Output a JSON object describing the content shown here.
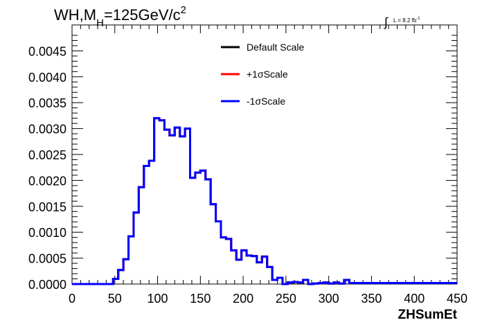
{
  "chart_data": {
    "type": "line",
    "title": "WH,M_H=125GeV/c^2",
    "title_parts": {
      "main": "WH,M",
      "sub": "H",
      "rest": "=125GeV/c",
      "sup": "2"
    },
    "lumi_label": {
      "integral": "∫",
      "text": "L = 8.2 fb",
      "sup": "-1"
    },
    "xlabel": "ZHSumEt",
    "ylabel": "",
    "xlim": [
      0,
      450
    ],
    "ylim": [
      0,
      0.005
    ],
    "x_ticks": [
      "0",
      "50",
      "100",
      "150",
      "200",
      "250",
      "300",
      "350",
      "400",
      "450"
    ],
    "y_ticks": [
      "0.0000",
      "0.0005",
      "0.0010",
      "0.0015",
      "0.0020",
      "0.0025",
      "0.0030",
      "0.0035",
      "0.0040",
      "0.0045"
    ],
    "bin_edges_start": 0,
    "bin_width": 6,
    "legend_position": "top-right",
    "series": [
      {
        "name": "Default Scale",
        "color": "#000000",
        "values": [
          0,
          0,
          0,
          0,
          0,
          0,
          0,
          0,
          0.0001,
          0.00027,
          0.00048,
          0.00092,
          0.00138,
          0.00187,
          0.00228,
          0.00238,
          0.0032,
          0.00316,
          0.00298,
          0.00287,
          0.00302,
          0.00285,
          0.003,
          0.00205,
          0.00215,
          0.00219,
          0.00202,
          0.00154,
          0.00121,
          0.0009,
          0.00087,
          0.00065,
          0.00047,
          0.00065,
          0.00055,
          0.00054,
          0.00042,
          0.00053,
          0.00033,
          8e-05,
          0.00012,
          0,
          3e-05,
          4e-05,
          3e-05,
          8e-05,
          0,
          1e-05,
          2e-05,
          3e-05,
          1e-05,
          3e-05,
          1e-05,
          8e-05,
          2e-05
        ]
      },
      {
        "name": "+1σScale",
        "color": "#ff0000",
        "values": [
          0,
          0,
          0,
          0,
          0,
          0,
          0,
          0,
          0.0001,
          0.00027,
          0.00048,
          0.00092,
          0.00138,
          0.00187,
          0.00228,
          0.00238,
          0.0032,
          0.00316,
          0.00298,
          0.00287,
          0.00302,
          0.00285,
          0.003,
          0.00205,
          0.00215,
          0.00219,
          0.00202,
          0.00154,
          0.00121,
          0.0009,
          0.00087,
          0.00065,
          0.00047,
          0.00065,
          0.00055,
          0.00054,
          0.00042,
          0.00053,
          0.00033,
          8e-05,
          0.00012,
          0,
          3e-05,
          4e-05,
          3e-05,
          8e-05,
          0,
          1e-05,
          2e-05,
          3e-05,
          1e-05,
          3e-05,
          1e-05,
          8e-05,
          2e-05
        ]
      },
      {
        "name": "-1σScale",
        "color": "#0000ff",
        "values": [
          0,
          0,
          0,
          0,
          0,
          0,
          0,
          0,
          0.0001,
          0.00027,
          0.00048,
          0.00092,
          0.00138,
          0.00187,
          0.00228,
          0.00238,
          0.0032,
          0.00316,
          0.00298,
          0.00287,
          0.00302,
          0.00285,
          0.003,
          0.00205,
          0.00215,
          0.00219,
          0.00202,
          0.00154,
          0.00121,
          0.0009,
          0.00087,
          0.00065,
          0.00047,
          0.00065,
          0.00055,
          0.00054,
          0.00042,
          0.00053,
          0.00033,
          8e-05,
          0.00012,
          0,
          3e-05,
          4e-05,
          3e-05,
          8e-05,
          0,
          1e-05,
          2e-05,
          3e-05,
          1e-05,
          3e-05,
          1e-05,
          8e-05,
          2e-05
        ]
      }
    ]
  }
}
